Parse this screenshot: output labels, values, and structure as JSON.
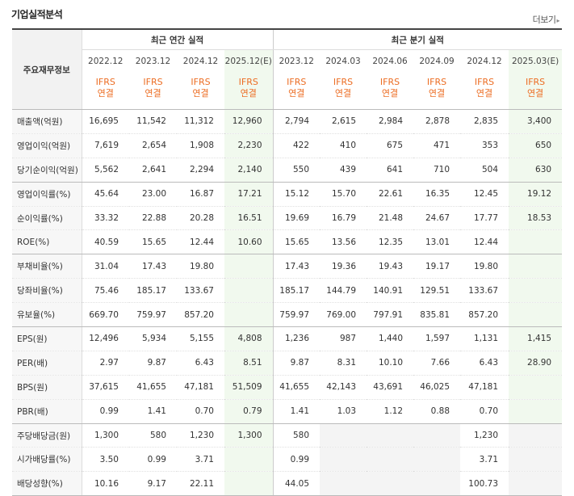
{
  "header": {
    "title": "기업실적분석",
    "more_label": "더보기"
  },
  "table": {
    "label_header": "주요재무정보",
    "annual_group": "최근 연간 실적",
    "quarter_group": "최근 분기 실적",
    "annual_periods": [
      "2022.12",
      "2023.12",
      "2024.12",
      "2025.12(E)"
    ],
    "quarter_periods": [
      "2023.12",
      "2024.03",
      "2024.06",
      "2024.09",
      "2024.12",
      "2025.03(E)"
    ],
    "basis_line1": "IFRS",
    "basis_line2": "연결",
    "rows": [
      {
        "label": "매출액(억원)",
        "values": [
          "16,695",
          "11,542",
          "11,312",
          "12,960",
          "2,794",
          "2,615",
          "2,984",
          "2,878",
          "2,835",
          "3,400"
        ]
      },
      {
        "label": "영업이익(억원)",
        "values": [
          "7,619",
          "2,654",
          "1,908",
          "2,230",
          "422",
          "410",
          "675",
          "471",
          "353",
          "650"
        ]
      },
      {
        "label": "당기순이익(억원)",
        "values": [
          "5,562",
          "2,641",
          "2,294",
          "2,140",
          "550",
          "439",
          "641",
          "710",
          "504",
          "630"
        ]
      },
      {
        "label": "영업이익률(%)",
        "values": [
          "45.64",
          "23.00",
          "16.87",
          "17.21",
          "15.12",
          "15.70",
          "22.61",
          "16.35",
          "12.45",
          "19.12"
        ]
      },
      {
        "label": "순이익률(%)",
        "values": [
          "33.32",
          "22.88",
          "20.28",
          "16.51",
          "19.69",
          "16.79",
          "21.48",
          "24.67",
          "17.77",
          "18.53"
        ]
      },
      {
        "label": "ROE(%)",
        "values": [
          "40.59",
          "15.65",
          "12.44",
          "10.60",
          "15.65",
          "13.56",
          "12.35",
          "13.01",
          "12.44",
          ""
        ]
      },
      {
        "label": "부채비율(%)",
        "values": [
          "31.04",
          "17.43",
          "19.80",
          "",
          "17.43",
          "19.36",
          "19.43",
          "19.17",
          "19.80",
          ""
        ]
      },
      {
        "label": "당좌비율(%)",
        "values": [
          "75.46",
          "185.17",
          "133.67",
          "",
          "185.17",
          "144.79",
          "140.91",
          "129.51",
          "133.67",
          ""
        ]
      },
      {
        "label": "유보율(%)",
        "values": [
          "669.70",
          "759.97",
          "857.20",
          "",
          "759.97",
          "769.00",
          "797.91",
          "835.81",
          "857.20",
          ""
        ]
      },
      {
        "label": "EPS(원)",
        "values": [
          "12,496",
          "5,934",
          "5,155",
          "4,808",
          "1,236",
          "987",
          "1,440",
          "1,597",
          "1,131",
          "1,415"
        ]
      },
      {
        "label": "PER(배)",
        "values": [
          "2.97",
          "9.87",
          "6.43",
          "8.51",
          "9.87",
          "8.31",
          "10.10",
          "7.66",
          "6.43",
          "28.90"
        ]
      },
      {
        "label": "BPS(원)",
        "values": [
          "37,615",
          "41,655",
          "47,181",
          "51,509",
          "41,655",
          "42,143",
          "43,691",
          "46,025",
          "47,181",
          ""
        ]
      },
      {
        "label": "PBR(배)",
        "values": [
          "0.99",
          "1.41",
          "0.70",
          "0.79",
          "1.41",
          "1.03",
          "1.12",
          "0.88",
          "0.70",
          ""
        ]
      },
      {
        "label": "주당배당금(원)",
        "values": [
          "1,300",
          "580",
          "1,230",
          "1,300",
          "580",
          "",
          "",
          "",
          "1,230",
          ""
        ]
      },
      {
        "label": "시가배당률(%)",
        "values": [
          "3.50",
          "0.99",
          "3.71",
          "",
          "0.99",
          "",
          "",
          "",
          "3.71",
          ""
        ]
      },
      {
        "label": "배당성향(%)",
        "values": [
          "10.16",
          "9.17",
          "22.11",
          "",
          "44.05",
          "",
          "",
          "",
          "100.73",
          ""
        ]
      }
    ]
  }
}
